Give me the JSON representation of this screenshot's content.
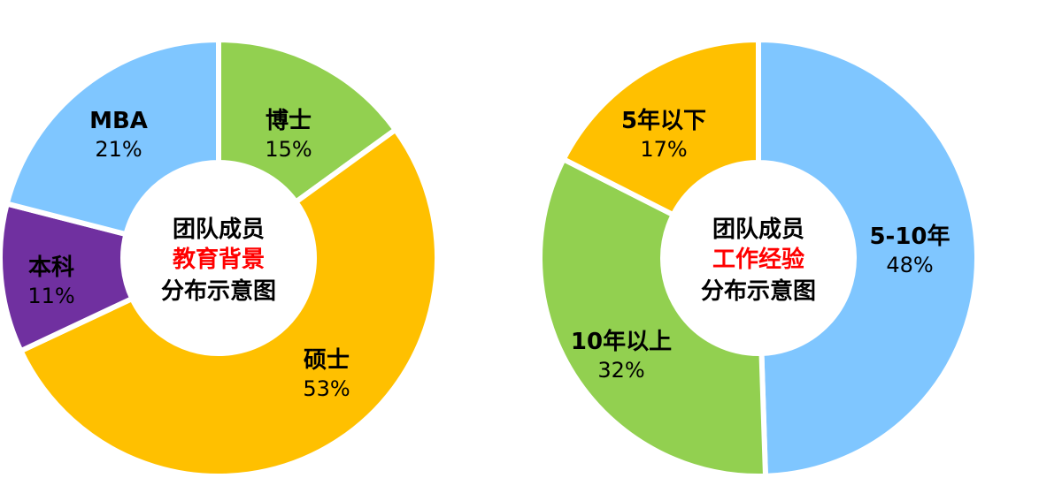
{
  "chart_data": [
    {
      "type": "pie",
      "variant": "donut",
      "title_lines": [
        "团队成员",
        "教育背景",
        "分布示意图"
      ],
      "title_accent_line": 1,
      "accent_color": "#ff0000",
      "slices": [
        {
          "name": "博士",
          "value": 15,
          "label": "15%",
          "color": "#92d050"
        },
        {
          "name": "硕士",
          "value": 53,
          "label": "53%",
          "color": "#ffc000"
        },
        {
          "name": "本科",
          "value": 11,
          "label": "11%",
          "color": "#7030a0"
        },
        {
          "name": "MBA",
          "value": 21,
          "label": "21%",
          "color": "#7fc6ff"
        }
      ],
      "start_direction": "top",
      "order": "clockwise"
    },
    {
      "type": "pie",
      "variant": "donut",
      "title_lines": [
        "团队成员",
        "工作经验",
        "分布示意图"
      ],
      "title_accent_line": 1,
      "accent_color": "#ff0000",
      "slices": [
        {
          "name": "5-10年",
          "value": 48,
          "label": "48%",
          "color": "#7fc6ff"
        },
        {
          "name": "10年以上",
          "value": 32,
          "label": "32%",
          "color": "#92d050"
        },
        {
          "name": "5年以下",
          "value": 17,
          "label": "17%",
          "color": "#ffc000"
        }
      ],
      "start_direction": "top",
      "order": "clockwise"
    }
  ]
}
